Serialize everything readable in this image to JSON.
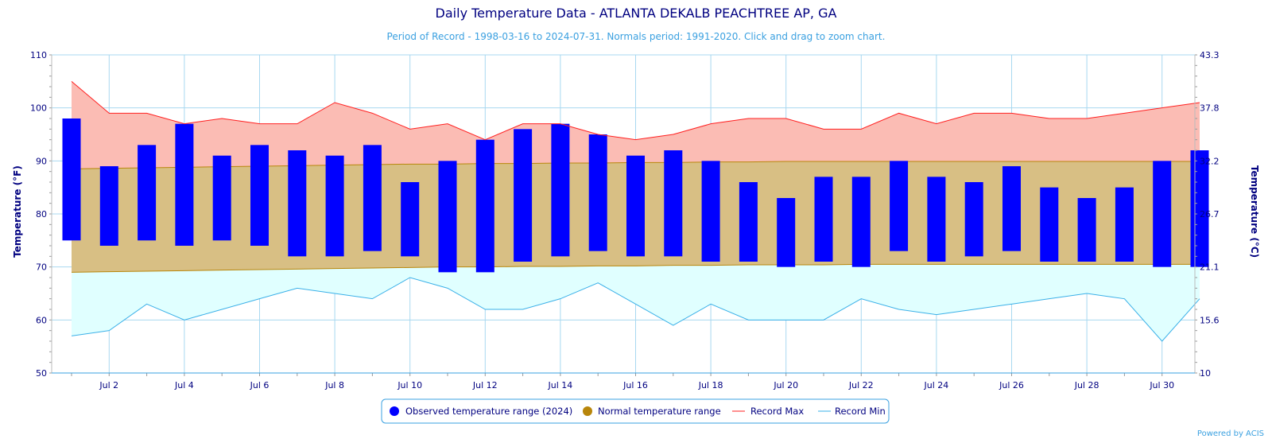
{
  "chart_data": {
    "type": "bar",
    "title": "Daily Temperature Data - ATLANTA DEKALB PEACHTREE AP, GA",
    "subtitle": "Period of Record - 1998-03-16 to 2024-07-31. Normals period: 1991-2020. Click and drag to zoom chart.",
    "ylabel": "Temperature (°F)",
    "ylabel_right": "Temperature (°C)",
    "ylim": [
      50,
      110
    ],
    "yticks": [
      50,
      60,
      70,
      80,
      90,
      100,
      110
    ],
    "yticks_right": [
      "10",
      "15.6",
      "21.1",
      "26.7",
      "32.2",
      "37.8",
      "43.3"
    ],
    "x": [
      1,
      2,
      3,
      4,
      5,
      6,
      7,
      8,
      9,
      10,
      11,
      12,
      13,
      14,
      15,
      16,
      17,
      18,
      19,
      20,
      21,
      22,
      23,
      24,
      25,
      26,
      27,
      28,
      29,
      30,
      31
    ],
    "xticks": [
      "Jul 2",
      "Jul 4",
      "Jul 6",
      "Jul 8",
      "Jul 10",
      "Jul 12",
      "Jul 14",
      "Jul 16",
      "Jul 18",
      "Jul 20",
      "Jul 22",
      "Jul 24",
      "Jul 26",
      "Jul 28",
      "Jul 30"
    ],
    "xtick_days": [
      2,
      4,
      6,
      8,
      10,
      12,
      14,
      16,
      18,
      20,
      22,
      24,
      26,
      28,
      30
    ],
    "grid": true,
    "legend_position": "bottom-center",
    "series": [
      {
        "name": "Observed temperature range (2024)",
        "color": "#0000ff",
        "low": [
          75,
          74,
          75,
          74,
          75,
          74,
          72,
          72,
          73,
          72,
          69,
          69,
          71,
          72,
          73,
          72,
          72,
          71,
          71,
          70,
          71,
          70,
          73,
          71,
          72,
          73,
          71,
          71,
          71,
          70,
          70
        ],
        "high": [
          98,
          89,
          93,
          97,
          91,
          93,
          92,
          91,
          93,
          86,
          90,
          94,
          96,
          97,
          95,
          91,
          92,
          90,
          86,
          83,
          87,
          87,
          90,
          87,
          86,
          89,
          85,
          83,
          85,
          90,
          92
        ]
      },
      {
        "name": "Normal temperature range",
        "color": "#b8860b",
        "low": [
          69,
          69.1,
          69.2,
          69.3,
          69.4,
          69.5,
          69.6,
          69.7,
          69.8,
          69.9,
          70,
          70,
          70.1,
          70.1,
          70.2,
          70.2,
          70.3,
          70.3,
          70.4,
          70.4,
          70.4,
          70.5,
          70.5,
          70.5,
          70.5,
          70.5,
          70.5,
          70.5,
          70.5,
          70.5,
          70.5
        ],
        "high": [
          88.5,
          88.6,
          88.7,
          88.8,
          88.9,
          89,
          89.1,
          89.2,
          89.3,
          89.4,
          89.4,
          89.5,
          89.5,
          89.6,
          89.6,
          89.7,
          89.7,
          89.8,
          89.8,
          89.9,
          89.9,
          89.9,
          89.9,
          89.9,
          89.9,
          89.9,
          89.9,
          89.9,
          89.9,
          89.9,
          89.9
        ]
      },
      {
        "name": "Record Max",
        "color": "#ff2020",
        "values": [
          105,
          99,
          99,
          97,
          98,
          97,
          97,
          101,
          99,
          96,
          97,
          94,
          97,
          97,
          95,
          94,
          95,
          97,
          98,
          98,
          96,
          96,
          99,
          97,
          99,
          99,
          98,
          98,
          99,
          100,
          101
        ]
      },
      {
        "name": "Record Min",
        "color": "#3ab0e8",
        "values": [
          57,
          58,
          63,
          60,
          62,
          64,
          66,
          65,
          64,
          68,
          66,
          62,
          62,
          64,
          67,
          63,
          59,
          63,
          60,
          60,
          60,
          64,
          62,
          61,
          62,
          63,
          64,
          65,
          64,
          56,
          64
        ]
      }
    ]
  },
  "credit": "Powered by ACIS"
}
